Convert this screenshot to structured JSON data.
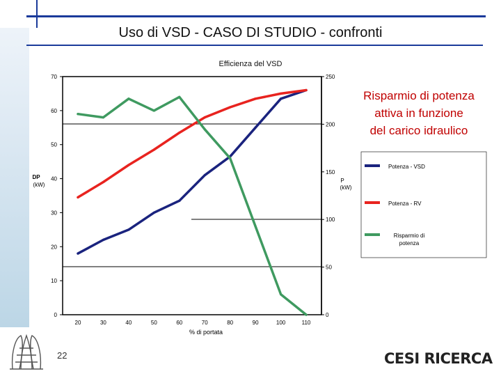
{
  "slide": {
    "title": "Uso di VSD - CASO DI STUDIO - confronti",
    "chart_title": "Efficienza del VSD",
    "side_title_lines": [
      "Risparmio di potenza",
      "attiva in funzione",
      "del carico idraulico"
    ],
    "page_number": "22",
    "logo_text": "CESI RICERCA"
  },
  "chart_data": {
    "type": "line",
    "title": "Efficienza del VSD",
    "xlabel": "% di portata",
    "ylabel": "DP (kW)",
    "y2label": "P (kW)",
    "x": [
      20,
      30,
      40,
      50,
      60,
      70,
      80,
      90,
      100,
      110
    ],
    "x_tick_labels": [
      "20",
      "30",
      "40",
      "50",
      "60",
      "70",
      "80",
      "90",
      "100",
      "110"
    ],
    "ylim": [
      0,
      70
    ],
    "y_ticks": [
      0,
      10,
      20,
      30,
      40,
      50,
      60,
      70
    ],
    "y_tick_labels": [
      "0",
      "10",
      "20",
      "30",
      "40",
      "50",
      "60",
      "70"
    ],
    "y2_tick_labels": [
      "0",
      "50",
      "100",
      "150",
      "200",
      "250"
    ],
    "series": [
      {
        "name": "Potenza - VSD",
        "color": "#1a237e",
        "x": [
          20,
          30,
          40,
          50,
          60,
          70,
          80,
          90,
          100,
          110
        ],
        "values": [
          18,
          22,
          25,
          30,
          33.5,
          41,
          46.5,
          55,
          63.5,
          66
        ]
      },
      {
        "name": "Potenza - RV",
        "color": "#e8231f",
        "x": [
          20,
          30,
          40,
          50,
          60,
          70,
          80,
          90,
          100,
          110
        ],
        "values": [
          34.5,
          39,
          44,
          48.5,
          53.5,
          58,
          61,
          63.5,
          65,
          66
        ]
      },
      {
        "name": "Risparmio di potenza",
        "color": "#3f9a60",
        "x": [
          20,
          30,
          40,
          50,
          60,
          70,
          80,
          90,
          100,
          110
        ],
        "values": [
          59,
          58,
          63.5,
          60,
          64,
          54.5,
          46,
          26,
          6,
          0
        ]
      }
    ],
    "grid": false,
    "legend": "right"
  }
}
